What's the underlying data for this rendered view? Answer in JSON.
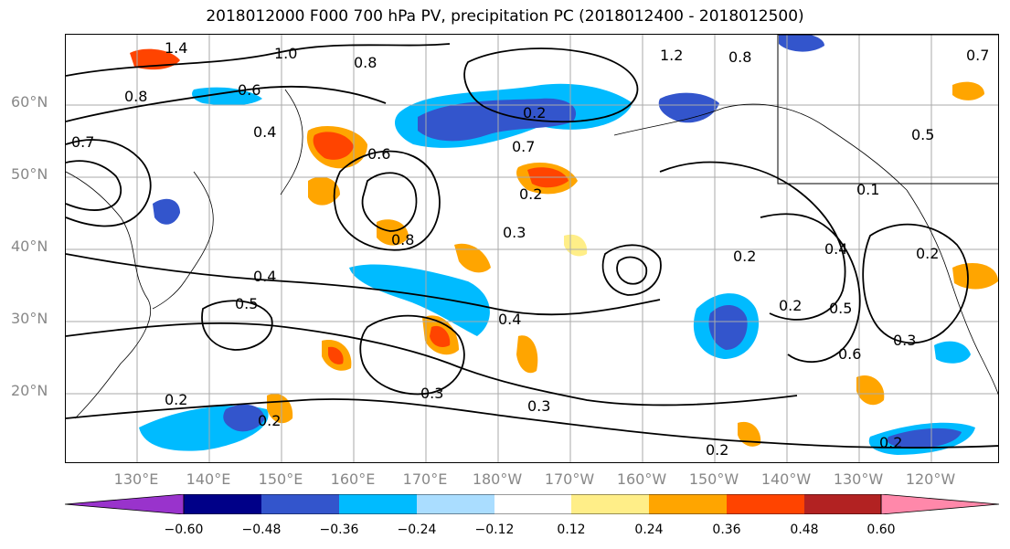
{
  "title": "2018012000 F000 700 hPa PV, precipitation PC (2018012400 - 2018012500)",
  "lat_labels": [
    "60°N",
    "50°N",
    "40°N",
    "30°N",
    "20°N"
  ],
  "lon_labels": [
    "130°E",
    "140°E",
    "150°E",
    "160°E",
    "170°E",
    "180°W",
    "170°W",
    "160°W",
    "150°W",
    "140°W",
    "130°W",
    "120°W"
  ],
  "contour_labels": [
    "1.4",
    "1.0",
    "0.8",
    "0.8",
    "0.6",
    "0.4",
    "0.7",
    "0.6",
    "0.2",
    "0.7",
    "0.2",
    "0.8",
    "0.3",
    "0.2",
    "0.4",
    "0.5",
    "0.2",
    "0.5",
    "0.3",
    "0.4",
    "0.3",
    "0.6",
    "0.2",
    "0.3",
    "0.2",
    "0.2",
    "0.1",
    "0.4",
    "0.2",
    "1.2",
    "0.8",
    "0.7",
    "0.5",
    "0.2"
  ],
  "colorbar": {
    "tick_labels": [
      "−0.60",
      "−0.48",
      "−0.36",
      "−0.24",
      "−0.12",
      "0.12",
      "0.24",
      "0.36",
      "0.48",
      "0.60"
    ],
    "colors": [
      "#9933cc",
      "#000088",
      "#3355cc",
      "#00bbff",
      "#aaddff",
      "#ffffff",
      "#ffee88",
      "#ffa500",
      "#ff4400",
      "#b22222",
      "#ff88aa"
    ]
  },
  "fill_colors": {
    "neg_strong": "#3355cc",
    "neg_deep": "#1a1aa0",
    "neg_mid": "#00bbff",
    "neg_light": "#aaddff",
    "pos_light": "#ffee88",
    "pos_mid": "#ffa500",
    "pos_strong": "#ff4400"
  }
}
